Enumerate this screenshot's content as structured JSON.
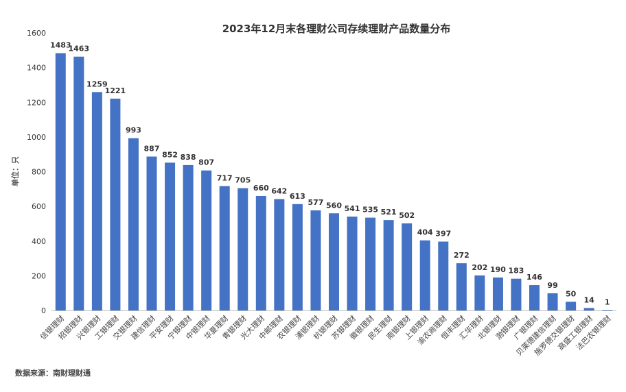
{
  "chart_data": {
    "type": "bar",
    "title": "2023年12月末各理财公司存续理财产品数量分布",
    "ylabel": "单位：只",
    "xlabel": "",
    "ylim": [
      0,
      1600
    ],
    "yticks": [
      0,
      200,
      400,
      600,
      800,
      1000,
      1200,
      1400,
      1600
    ],
    "grid": false,
    "bar_color": "#4472C4",
    "categories": [
      "信银理财",
      "招银理财",
      "兴银理财",
      "工银理财",
      "交银理财",
      "建信理财",
      "平安理财",
      "宁银理财",
      "中银理财",
      "华夏理财",
      "青银理财",
      "光大理财",
      "中邮理财",
      "农银理财",
      "浦银理财",
      "杭银理财",
      "苏银理财",
      "徽银理财",
      "民生理财",
      "南银理财",
      "上银理财",
      "渝农商理财",
      "恒丰理财",
      "汇华理财",
      "北银理财",
      "渤银理财",
      "广银理财",
      "贝莱德建信理财",
      "施罗德交银理财",
      "高盛工银理财",
      "法巴农银理财"
    ],
    "values": [
      1483,
      1463,
      1259,
      1221,
      993,
      887,
      852,
      838,
      807,
      717,
      705,
      660,
      642,
      613,
      577,
      560,
      541,
      535,
      521,
      502,
      404,
      397,
      272,
      202,
      190,
      183,
      146,
      99,
      50,
      14,
      1
    ]
  },
  "footer": {
    "source": "数据来源：南财理财通"
  }
}
